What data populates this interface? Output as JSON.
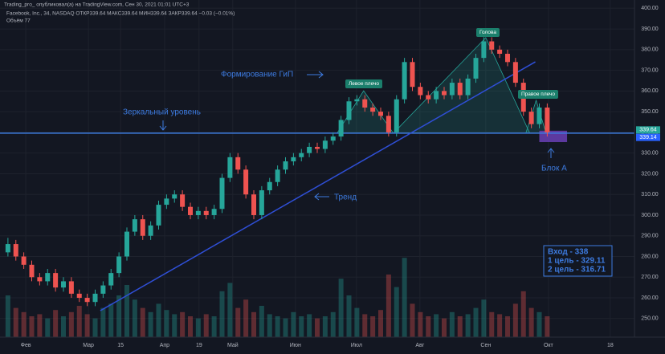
{
  "chart_data": {
    "type": "candlestick",
    "publisher": "Trading_pro_ опубликовал(а) на TradingView.com, Сен 30, 2021 01:01 UTC+3",
    "title": "Facebook, Inc., 34, NASDAQ ОТКР339.64 МАКС339.64 МИН339.64 ЗАКР339.64 −0.03 (−0.01%)",
    "volume_label": "Объём 77",
    "up_color": "#26a69a",
    "down_color": "#ef5350",
    "xlim": [
      0,
      160
    ],
    "ylim": [
      241,
      404
    ],
    "grid": true,
    "xticks": [
      {
        "value": 6.5,
        "label": "Фев"
      },
      {
        "value": 22.3,
        "label": "Мар"
      },
      {
        "value": 30.4,
        "label": "15"
      },
      {
        "value": 41.5,
        "label": "Апр"
      },
      {
        "value": 50.2,
        "label": "19"
      },
      {
        "value": 58.7,
        "label": "Май"
      },
      {
        "value": 74.5,
        "label": "Июн"
      },
      {
        "value": 89.9,
        "label": "Июл"
      },
      {
        "value": 105.9,
        "label": "Авг"
      },
      {
        "value": 122.5,
        "label": "Сен"
      },
      {
        "value": 138.3,
        "label": "Окт"
      },
      {
        "value": 153.9,
        "label": "18"
      }
    ],
    "yticks": [
      {
        "value": 250,
        "label": "250.00"
      },
      {
        "value": 260,
        "label": "260.00"
      },
      {
        "value": 270,
        "label": "270.00"
      },
      {
        "value": 280,
        "label": "280.00"
      },
      {
        "value": 290,
        "label": "290.00"
      },
      {
        "value": 300,
        "label": "300.00"
      },
      {
        "value": 310,
        "label": "310.00"
      },
      {
        "value": 320,
        "label": "320.00"
      },
      {
        "value": 330,
        "label": "330.00"
      },
      {
        "value": 340,
        "label": "340.00"
      },
      {
        "value": 350,
        "label": "350.00"
      },
      {
        "value": 360,
        "label": "360.00"
      },
      {
        "value": 370,
        "label": "370.00"
      },
      {
        "value": 380,
        "label": "380.00"
      },
      {
        "value": 390,
        "label": "390.00"
      },
      {
        "value": 400,
        "label": "400.00"
      }
    ],
    "x": [
      2,
      4,
      6,
      8,
      10,
      12,
      14,
      16,
      18,
      20,
      22,
      24,
      26,
      28,
      30,
      32,
      34,
      36,
      38,
      40,
      42,
      44,
      46,
      48,
      50,
      52,
      54,
      56,
      58,
      60,
      62,
      64,
      66,
      68,
      70,
      72,
      74,
      76,
      78,
      80,
      82,
      84,
      86,
      88,
      90,
      92,
      94,
      96,
      98,
      100,
      102,
      104,
      106,
      108,
      110,
      112,
      114,
      116,
      118,
      120,
      122,
      124,
      126,
      128,
      130,
      132,
      134,
      136,
      138
    ],
    "ohlc": [
      [
        282,
        289,
        280,
        286
      ],
      [
        286,
        288,
        278,
        280
      ],
      [
        280,
        282,
        274,
        276
      ],
      [
        276,
        278,
        268,
        270
      ],
      [
        270,
        272,
        266,
        268
      ],
      [
        268,
        274,
        266,
        272
      ],
      [
        272,
        274,
        263,
        265
      ],
      [
        265,
        270,
        263,
        268
      ],
      [
        268,
        270,
        260,
        262
      ],
      [
        262,
        264,
        258,
        260
      ],
      [
        260,
        262,
        256,
        258
      ],
      [
        258,
        264,
        256,
        262
      ],
      [
        262,
        268,
        260,
        266
      ],
      [
        266,
        274,
        264,
        272
      ],
      [
        272,
        282,
        270,
        280
      ],
      [
        280,
        294,
        278,
        292
      ],
      [
        292,
        300,
        290,
        298
      ],
      [
        298,
        300,
        288,
        290
      ],
      [
        290,
        297,
        288,
        295
      ],
      [
        295,
        307,
        293,
        305
      ],
      [
        305,
        310,
        303,
        308
      ],
      [
        308,
        312,
        306,
        310
      ],
      [
        310,
        312,
        302,
        304
      ],
      [
        304,
        306,
        298,
        300
      ],
      [
        300,
        304,
        298,
        302
      ],
      [
        302,
        304,
        298,
        300
      ],
      [
        300,
        305,
        298,
        303
      ],
      [
        303,
        320,
        301,
        318
      ],
      [
        318,
        330,
        316,
        328
      ],
      [
        328,
        330,
        320,
        322
      ],
      [
        322,
        324,
        308,
        310
      ],
      [
        310,
        312,
        298,
        300
      ],
      [
        300,
        314,
        298,
        312
      ],
      [
        312,
        318,
        310,
        316
      ],
      [
        316,
        324,
        314,
        322
      ],
      [
        322,
        328,
        320,
        326
      ],
      [
        326,
        330,
        324,
        328
      ],
      [
        328,
        332,
        326,
        330
      ],
      [
        330,
        335,
        328,
        333
      ],
      [
        333,
        335,
        330,
        332
      ],
      [
        332,
        338,
        330,
        336
      ],
      [
        336,
        340,
        334,
        338
      ],
      [
        338,
        348,
        336,
        346
      ],
      [
        346,
        357,
        344,
        355
      ],
      [
        355,
        358,
        353,
        356
      ],
      [
        356,
        358,
        350,
        352
      ],
      [
        352,
        354,
        348,
        350
      ],
      [
        350,
        352,
        346,
        348
      ],
      [
        348,
        350,
        338,
        340
      ],
      [
        340,
        358,
        338,
        356
      ],
      [
        356,
        376,
        354,
        374
      ],
      [
        374,
        376,
        360,
        362
      ],
      [
        362,
        364,
        356,
        358
      ],
      [
        358,
        360,
        354,
        356
      ],
      [
        356,
        362,
        354,
        360
      ],
      [
        360,
        362,
        356,
        358
      ],
      [
        358,
        366,
        356,
        364
      ],
      [
        364,
        366,
        356,
        358
      ],
      [
        358,
        368,
        356,
        366
      ],
      [
        366,
        378,
        364,
        376
      ],
      [
        376,
        386,
        374,
        384
      ],
      [
        384,
        386,
        378,
        380
      ],
      [
        380,
        382,
        376,
        378
      ],
      [
        378,
        380,
        372,
        374
      ],
      [
        374,
        376,
        362,
        364
      ],
      [
        364,
        366,
        348,
        350
      ],
      [
        350,
        352,
        342,
        344
      ],
      [
        344,
        354,
        342,
        352
      ],
      [
        352,
        354,
        338,
        340
      ]
    ],
    "volume": [
      20,
      14,
      12,
      10,
      11,
      9,
      13,
      10,
      12,
      15,
      11,
      9,
      14,
      16,
      20,
      25,
      18,
      14,
      12,
      16,
      13,
      11,
      12,
      10,
      9,
      11,
      10,
      22,
      26,
      14,
      18,
      12,
      15,
      11,
      10,
      9,
      12,
      10,
      11,
      9,
      10,
      12,
      28,
      20,
      14,
      11,
      10,
      13,
      30,
      24,
      38,
      16,
      12,
      10,
      11,
      9,
      12,
      10,
      11,
      14,
      18,
      12,
      11,
      10,
      16,
      22,
      14,
      12,
      10
    ],
    "level": 339.64,
    "trend_line": {
      "x": [
        25.3,
        135.0
      ],
      "y": [
        253.8,
        374.1
      ]
    },
    "patterns": [
      {
        "x": [
          85.0,
          91.7,
          99.2
        ],
        "y": [
          339.6,
          360.1,
          339.6
        ]
      },
      {
        "x": [
          99.2,
          122.5,
          133.6
        ],
        "y": [
          339.6,
          385.8,
          339.6
        ]
      },
      {
        "x": [
          132.6,
          135.2,
          137.7
        ],
        "y": [
          339.6,
          355.5,
          339.6
        ]
      }
    ],
    "block": {
      "x": [
        136,
        143
      ],
      "y": [
        335.3,
        340.8
      ]
    },
    "price_labels": [
      {
        "value": 339.64,
        "color": "#26a69a"
      },
      {
        "value": 339.14,
        "color": "#2962ff"
      }
    ],
    "annotations": [
      "Формирование ГиП",
      "Зеркальный уровень",
      "Тренд",
      "Блок А"
    ],
    "pattern_labels": [
      "Левое плечо",
      "Голова",
      "Правое плечо"
    ],
    "info_box": [
      "Вход - 338",
      "1 цель - 329.11",
      "2 цель - 316.71"
    ]
  }
}
